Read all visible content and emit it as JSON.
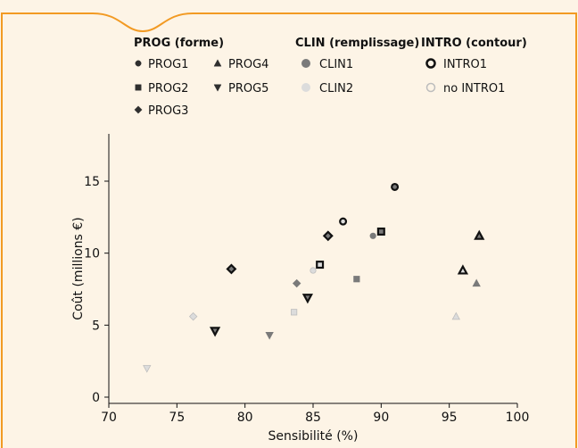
{
  "colors": {
    "frame": "#f29a23",
    "background": "#fdf4e6",
    "dark": "#2f2f2f",
    "clin1_fill": "#7a7a7a",
    "clin2_fill": "#dcdcdc",
    "clin2_stroke": "#bdbdbd"
  },
  "legend": {
    "prog": {
      "title": "PROG (forme)",
      "items": [
        {
          "label": "PROG1",
          "shape": "circle"
        },
        {
          "label": "PROG2",
          "shape": "square"
        },
        {
          "label": "PROG3",
          "shape": "diamond"
        },
        {
          "label": "PROG4",
          "shape": "triangle-up"
        },
        {
          "label": "PROG5",
          "shape": "triangle-down"
        }
      ]
    },
    "clin": {
      "title": "CLIN (remplissage)",
      "items": [
        {
          "label": "CLIN1"
        },
        {
          "label": "CLIN2"
        }
      ]
    },
    "intro": {
      "title": "INTRO (contour)",
      "items": [
        {
          "label": "INTRO1"
        },
        {
          "label": "no INTRO1"
        }
      ]
    }
  },
  "chart_data": {
    "type": "scatter",
    "xlabel": "Sensibilité (%)",
    "ylabel": "Coût (millions €)",
    "xlim": [
      70,
      100
    ],
    "ylim": [
      0,
      17.5
    ],
    "xticks": [
      70,
      75,
      80,
      85,
      90,
      95,
      100
    ],
    "yticks": [
      0,
      5,
      10,
      15
    ],
    "grid": false,
    "legend_position": "top",
    "points": [
      {
        "x": 72.8,
        "y": 2.0,
        "prog": "PROG5",
        "clin": "CLIN2",
        "intro": "no INTRO1"
      },
      {
        "x": 76.2,
        "y": 5.6,
        "prog": "PROG3",
        "clin": "CLIN2",
        "intro": "no INTRO1"
      },
      {
        "x": 77.8,
        "y": 4.6,
        "prog": "PROG5",
        "clin": "CLIN1",
        "intro": "INTRO1"
      },
      {
        "x": 79.0,
        "y": 8.9,
        "prog": "PROG3",
        "clin": "CLIN1",
        "intro": "INTRO1"
      },
      {
        "x": 81.8,
        "y": 4.3,
        "prog": "PROG5",
        "clin": "CLIN1",
        "intro": "no INTRO1"
      },
      {
        "x": 83.6,
        "y": 5.9,
        "prog": "PROG2",
        "clin": "CLIN2",
        "intro": "no INTRO1"
      },
      {
        "x": 83.8,
        "y": 7.9,
        "prog": "PROG3",
        "clin": "CLIN1",
        "intro": "no INTRO1"
      },
      {
        "x": 84.6,
        "y": 6.9,
        "prog": "PROG5",
        "clin": "CLIN1",
        "intro": "INTRO1"
      },
      {
        "x": 85.0,
        "y": 8.8,
        "prog": "PROG1",
        "clin": "CLIN2",
        "intro": "no INTRO1"
      },
      {
        "x": 85.5,
        "y": 9.2,
        "prog": "PROG2",
        "clin": "CLIN2",
        "intro": "INTRO1"
      },
      {
        "x": 86.1,
        "y": 11.2,
        "prog": "PROG3",
        "clin": "CLIN1",
        "intro": "INTRO1"
      },
      {
        "x": 87.2,
        "y": 12.2,
        "prog": "PROG1",
        "clin": "CLIN2",
        "intro": "INTRO1"
      },
      {
        "x": 88.2,
        "y": 8.2,
        "prog": "PROG2",
        "clin": "CLIN1",
        "intro": "no INTRO1"
      },
      {
        "x": 89.4,
        "y": 11.2,
        "prog": "PROG1",
        "clin": "CLIN1",
        "intro": "no INTRO1"
      },
      {
        "x": 90.0,
        "y": 11.5,
        "prog": "PROG2",
        "clin": "CLIN1",
        "intro": "INTRO1"
      },
      {
        "x": 91.0,
        "y": 14.6,
        "prog": "PROG1",
        "clin": "CLIN1",
        "intro": "INTRO1"
      },
      {
        "x": 95.5,
        "y": 5.6,
        "prog": "PROG4",
        "clin": "CLIN2",
        "intro": "no INTRO1"
      },
      {
        "x": 96.0,
        "y": 8.8,
        "prog": "PROG4",
        "clin": "CLIN2",
        "intro": "INTRO1"
      },
      {
        "x": 97.0,
        "y": 7.9,
        "prog": "PROG4",
        "clin": "CLIN1",
        "intro": "no INTRO1"
      },
      {
        "x": 97.2,
        "y": 11.2,
        "prog": "PROG4",
        "clin": "CLIN1",
        "intro": "INTRO1"
      }
    ]
  }
}
